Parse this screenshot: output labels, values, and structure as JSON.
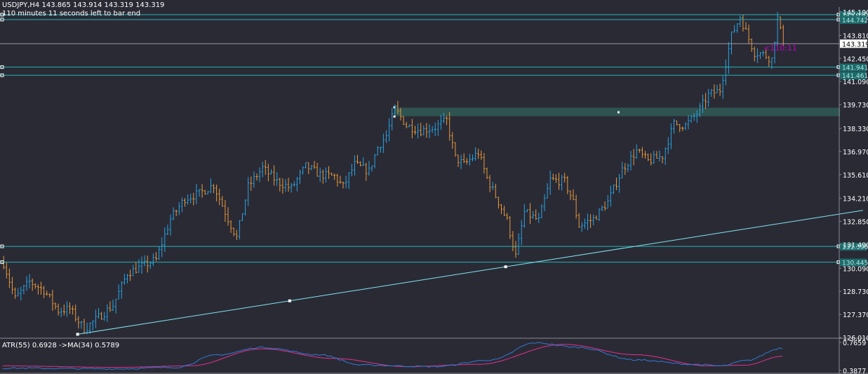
{
  "header": {
    "symbol_line": "USDJPY,H4  143.865 143.914 143.319 143.319",
    "countdown_line": "110 minutes 11 seconds left to bar end"
  },
  "indicator": {
    "label": "ATR(55) 0.6928  ->MA(34) 0.5789",
    "axis_labels": [
      "0.7659",
      "0.3877"
    ]
  },
  "countdown_marker": "<110:11",
  "colors": {
    "background": "#2a2a35",
    "bull": "#29a3e0",
    "bear": "#e8993a",
    "level": "#22b5b5",
    "trendline": "#7fe7ef",
    "zone": "#2f5a55",
    "atr": "#2f7bd6",
    "ma": "#e0308c",
    "text": "#ffffff"
  },
  "chart_data": {
    "type": "candlestick",
    "symbol": "USDJPY",
    "timeframe": "H4",
    "ylim": [
      126.0,
      145.6
    ],
    "y_ticks": [
      "145.190",
      "143.810",
      "142.450",
      "141.090",
      "139.730",
      "138.330",
      "136.970",
      "135.610",
      "134.210",
      "132.850",
      "131.490",
      "130.090",
      "128.730",
      "127.370",
      "126.010"
    ],
    "current_price": "143.319",
    "horizontal_levels": [
      {
        "price": 145.03,
        "label": "145.030"
      },
      {
        "price": 144.74,
        "label": "144.742"
      },
      {
        "price": 141.94,
        "label": "141.941"
      },
      {
        "price": 141.46,
        "label": "141.461"
      },
      {
        "price": 131.38,
        "label": "131.396"
      },
      {
        "price": 130.45,
        "label": "130.445"
      }
    ],
    "zone": {
      "from_bar": 136,
      "to_bar": 291,
      "top": 139.55,
      "bottom": 139.05
    },
    "trendline": {
      "from_bar": 26,
      "from_price": 126.2,
      "to_bar": 299,
      "to_price": 133.5
    },
    "bar_count": 270,
    "price_path": [
      [
        0,
        130.4
      ],
      [
        4,
        128.3
      ],
      [
        9,
        129.3
      ],
      [
        14,
        128.8
      ],
      [
        19,
        127.6
      ],
      [
        23,
        127.7
      ],
      [
        28,
        126.5
      ],
      [
        33,
        127.2
      ],
      [
        38,
        127.9
      ],
      [
        43,
        129.8
      ],
      [
        48,
        130.2
      ],
      [
        53,
        130.6
      ],
      [
        58,
        133.0
      ],
      [
        63,
        134.2
      ],
      [
        68,
        134.5
      ],
      [
        73,
        135.0
      ],
      [
        78,
        133.0
      ],
      [
        81,
        131.9
      ],
      [
        85,
        134.9
      ],
      [
        90,
        136.0
      ],
      [
        95,
        135.2
      ],
      [
        100,
        134.8
      ],
      [
        105,
        136.1
      ],
      [
        110,
        135.6
      ],
      [
        115,
        135.5
      ],
      [
        118,
        134.9
      ],
      [
        122,
        136.2
      ],
      [
        127,
        135.8
      ],
      [
        130,
        137.2
      ],
      [
        133,
        137.9
      ],
      [
        136,
        139.5
      ],
      [
        140,
        138.5
      ],
      [
        145,
        138.2
      ],
      [
        150,
        138.4
      ],
      [
        154,
        138.8
      ],
      [
        157,
        136.6
      ],
      [
        160,
        136.2
      ],
      [
        165,
        136.9
      ],
      [
        168,
        135.4
      ],
      [
        172,
        134.0
      ],
      [
        175,
        132.9
      ],
      [
        178,
        130.8
      ],
      [
        181,
        133.4
      ],
      [
        186,
        132.9
      ],
      [
        190,
        135.3
      ],
      [
        195,
        135.2
      ],
      [
        198,
        134.0
      ],
      [
        200,
        132.6
      ],
      [
        205,
        133.0
      ],
      [
        210,
        134.0
      ],
      [
        215,
        135.9
      ],
      [
        220,
        137.0
      ],
      [
        224,
        136.4
      ],
      [
        229,
        136.7
      ],
      [
        233,
        138.6
      ],
      [
        237,
        138.5
      ],
      [
        241,
        139.2
      ],
      [
        245,
        140.3
      ],
      [
        249,
        140.6
      ],
      [
        253,
        143.8
      ],
      [
        256,
        144.9
      ],
      [
        259,
        143.6
      ],
      [
        261,
        142.8
      ],
      [
        264,
        142.7
      ],
      [
        267,
        142.4
      ],
      [
        269,
        144.8
      ],
      [
        271,
        143.3
      ]
    ],
    "indicator": {
      "name": "ATR(55)",
      "value": 0.6928,
      "ma_name": "MA(34)",
      "ma_value": 0.5789,
      "ylim": [
        0.3877,
        0.7659
      ]
    }
  }
}
